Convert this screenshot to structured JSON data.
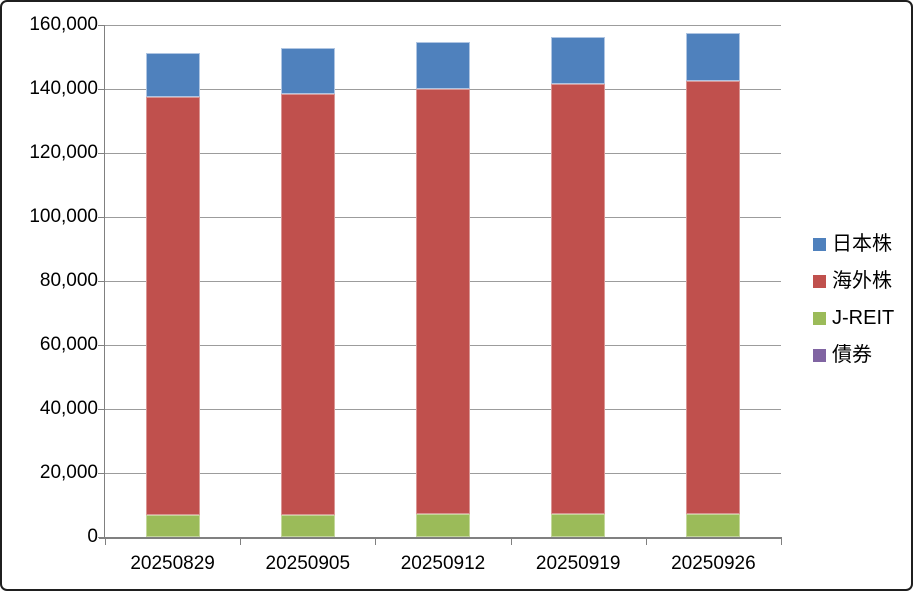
{
  "chart_data": {
    "type": "bar",
    "stacked": true,
    "title": "",
    "categories": [
      "20250829",
      "20250905",
      "20250912",
      "20250919",
      "20250926"
    ],
    "series": [
      {
        "name": "日本株",
        "color": "#4F81BD",
        "border_color": "#AFC5E2",
        "values": [
          14000,
          14400,
          14900,
          14800,
          15000
        ]
      },
      {
        "name": "海外株",
        "color": "#C0504D",
        "border_color": "#DA9694",
        "values": [
          130500,
          131400,
          132800,
          134400,
          135400
        ]
      },
      {
        "name": "J-REIT",
        "color": "#9BBB59",
        "border_color": "#C4D79B",
        "values": [
          6900,
          6900,
          7100,
          7100,
          7100
        ]
      },
      {
        "name": "債券",
        "color": "#8064A2",
        "border_color": "#B3A2C7",
        "values": [
          0,
          0,
          0,
          0,
          0
        ]
      }
    ],
    "stack_order_bottom_to_top": [
      "債券",
      "J-REIT",
      "海外株",
      "日本株"
    ],
    "ylim": [
      0,
      160000
    ],
    "ytick_step": 20000,
    "ytick_labels": [
      "0",
      "20,000",
      "40,000",
      "60,000",
      "80,000",
      "100,000",
      "120,000",
      "140,000",
      "160,000"
    ],
    "grid": true,
    "legend_position": "right",
    "legend_entries": [
      "日本株",
      "海外株",
      "J-REIT",
      "債券"
    ],
    "colors": {
      "grid_color": "#9C9C9C",
      "axis_color": "#808080",
      "text_color": "#000000",
      "background": "#FFFFFF",
      "chart_border": "#1F1F1F"
    }
  }
}
